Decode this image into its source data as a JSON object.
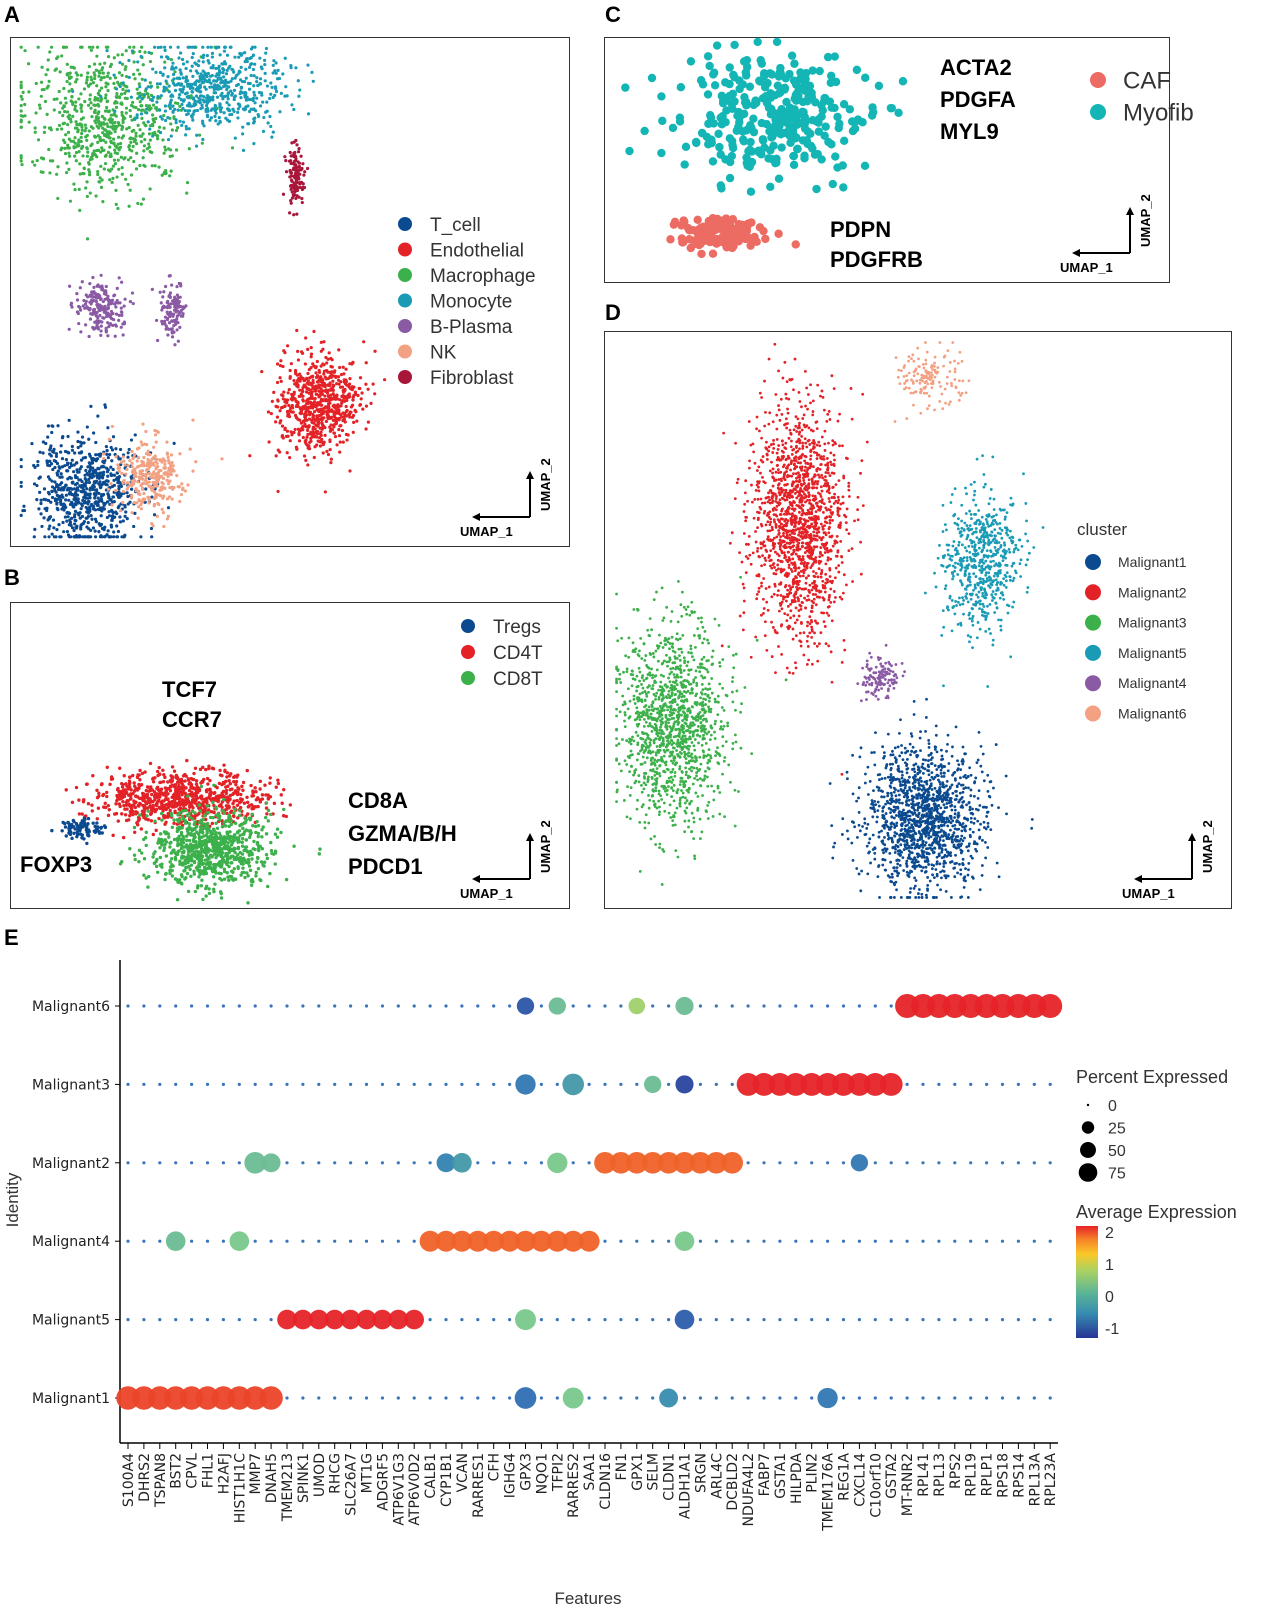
{
  "chart_data": [
    {
      "panel": "A",
      "type": "scatter",
      "title": "",
      "xlabel": "UMAP_1",
      "ylabel": "UMAP_2",
      "legend_position": "right",
      "legend": [
        {
          "label": "T_cell",
          "color": "#0b4a8f"
        },
        {
          "label": "Endothelial",
          "color": "#e32227"
        },
        {
          "label": "Macrophage",
          "color": "#3cb04a"
        },
        {
          "label": "Monocyte",
          "color": "#1a9bb5"
        },
        {
          "label": "B-Plasma",
          "color": "#8b5aa5"
        },
        {
          "label": "NK",
          "color": "#f2a183"
        },
        {
          "label": "Fibroblast",
          "color": "#a8163a"
        }
      ],
      "clusters": [
        {
          "label": "Macrophage",
          "center": [
            0.17,
            0.16
          ],
          "spread": [
            0.12,
            0.12
          ],
          "n": 700
        },
        {
          "label": "Monocyte",
          "center": [
            0.36,
            0.1
          ],
          "spread": [
            0.11,
            0.07
          ],
          "n": 600
        },
        {
          "label": "Fibroblast",
          "center": [
            0.51,
            0.27
          ],
          "spread": [
            0.012,
            0.05
          ],
          "n": 120
        },
        {
          "label": "B-Plasma",
          "center": [
            0.16,
            0.53
          ],
          "spread": [
            0.035,
            0.045
          ],
          "n": 200
        },
        {
          "label": "B-Plasma",
          "center": [
            0.29,
            0.54
          ],
          "spread": [
            0.018,
            0.05
          ],
          "n": 120
        },
        {
          "label": "Endothelial",
          "center": [
            0.55,
            0.72
          ],
          "spread": [
            0.06,
            0.08
          ],
          "n": 700
        },
        {
          "label": "T_cell",
          "center": [
            0.14,
            0.89
          ],
          "spread": [
            0.08,
            0.09
          ],
          "n": 700
        },
        {
          "label": "NK",
          "center": [
            0.25,
            0.86
          ],
          "spread": [
            0.05,
            0.06
          ],
          "n": 300
        }
      ]
    },
    {
      "panel": "B",
      "type": "scatter",
      "xlabel": "UMAP_1",
      "ylabel": "UMAP_2",
      "legend_position": "top-right",
      "legend": [
        {
          "label": "Tregs",
          "color": "#0b4a8f"
        },
        {
          "label": "CD4T",
          "color": "#e32227"
        },
        {
          "label": "CD8T",
          "color": "#3cb04a"
        }
      ],
      "annotations": [
        {
          "text": "TCF7\nCCR7",
          "at": "top-center"
        },
        {
          "text": "CD8A\nGZMA/B/H\nPDCD1",
          "at": "right"
        },
        {
          "text": "FOXP3",
          "at": "bottom-left"
        }
      ],
      "clusters": [
        {
          "label": "CD4T",
          "center": [
            0.3,
            0.64
          ],
          "spread": [
            0.13,
            0.07
          ],
          "n": 800
        },
        {
          "label": "CD8T",
          "center": [
            0.36,
            0.8
          ],
          "spread": [
            0.09,
            0.1
          ],
          "n": 800
        },
        {
          "label": "Tregs",
          "center": [
            0.13,
            0.74
          ],
          "spread": [
            0.03,
            0.03
          ],
          "n": 90
        }
      ]
    },
    {
      "panel": "C",
      "type": "scatter",
      "xlabel": "UMAP_1",
      "ylabel": "UMAP_2",
      "legend_position": "top-right",
      "legend": [
        {
          "label": "CAF",
          "color": "#ec6b62"
        },
        {
          "label": "Myofib",
          "color": "#14b5b5"
        }
      ],
      "annotations": [
        {
          "text": "ACTA2\nPDGFA\nMYL9",
          "at": "top-right"
        },
        {
          "text": "PDPN\nPDGFRB",
          "at": "bottom-center"
        }
      ],
      "clusters": [
        {
          "label": "Myofib",
          "center": [
            0.3,
            0.32
          ],
          "spread": [
            0.14,
            0.2
          ],
          "n": 320
        },
        {
          "label": "CAF",
          "center": [
            0.2,
            0.8
          ],
          "spread": [
            0.07,
            0.06
          ],
          "n": 130
        }
      ]
    },
    {
      "panel": "D",
      "type": "scatter",
      "xlabel": "UMAP_1",
      "ylabel": "UMAP_2",
      "legend_title": "cluster",
      "legend_position": "right",
      "legend": [
        {
          "label": "Malignant1",
          "color": "#0b4a8f"
        },
        {
          "label": "Malignant2",
          "color": "#e32227"
        },
        {
          "label": "Malignant3",
          "color": "#3cb04a"
        },
        {
          "label": "Malignant5",
          "color": "#1a9bb5"
        },
        {
          "label": "Malignant4",
          "color": "#8b5aa5"
        },
        {
          "label": "Malignant6",
          "color": "#f2a183"
        }
      ],
      "clusters": [
        {
          "label": "Malignant6",
          "center": [
            0.52,
            0.08
          ],
          "spread": [
            0.04,
            0.04
          ],
          "n": 150
        },
        {
          "label": "Malignant2",
          "center": [
            0.31,
            0.33
          ],
          "spread": [
            0.06,
            0.17
          ],
          "n": 1500
        },
        {
          "label": "Malignant5",
          "center": [
            0.6,
            0.4
          ],
          "spread": [
            0.05,
            0.1
          ],
          "n": 600
        },
        {
          "label": "Malignant4",
          "center": [
            0.44,
            0.6
          ],
          "spread": [
            0.025,
            0.03
          ],
          "n": 120
        },
        {
          "label": "Malignant3",
          "center": [
            0.11,
            0.68
          ],
          "spread": [
            0.07,
            0.14
          ],
          "n": 1300
        },
        {
          "label": "Malignant1",
          "center": [
            0.51,
            0.84
          ],
          "spread": [
            0.08,
            0.1
          ],
          "n": 1400
        }
      ]
    },
    {
      "panel": "E",
      "type": "dotplot",
      "xlabel": "Features",
      "ylabel": "Identity",
      "identities": [
        "Malignant6",
        "Malignant3",
        "Malignant2",
        "Malignant4",
        "Malignant5",
        "Malignant1"
      ],
      "features": [
        "S100A4",
        "DHRS2",
        "TSPAN8",
        "BST2",
        "CPVL",
        "FHL1",
        "H2AFJ",
        "HIST1H1C",
        "MMP7",
        "DNAH5",
        "TMEM213",
        "SPINK1",
        "UMOD",
        "RHCG",
        "SLC26A7",
        "MT1G",
        "ADGRF5",
        "ATP6V1G3",
        "ATP6V0D2",
        "CALB1",
        "CYP1B1",
        "VCAN",
        "RARRES1",
        "CFH",
        "IGHG4",
        "GPX3",
        "NQO1",
        "TFPI2",
        "RARRES2",
        "SAA1",
        "CLDN16",
        "FN1",
        "GPX1",
        "SELM",
        "CLDN1",
        "ALDH1A1",
        "SRGN",
        "ARL4C",
        "DCBLD2",
        "NDUFA4L2",
        "FABP7",
        "GSTA1",
        "HILPDA",
        "PLIN2",
        "TMEM176A",
        "REG1A",
        "CXCL14",
        "C10orf10",
        "GSTA2",
        "MT-RNR2",
        "RPL41",
        "RPL13",
        "RPS2",
        "RPL19",
        "RPLP1",
        "RPS18",
        "RPS14",
        "RPL13A",
        "RPL23A"
      ],
      "size_legend": {
        "title": "Percent Expressed",
        "breaks": [
          0,
          25,
          50,
          75
        ]
      },
      "color_legend": {
        "title": "Average Expression",
        "breaks": [
          2,
          1,
          0,
          -1
        ],
        "range": [
          -1,
          2
        ]
      },
      "highlight_blocks": [
        {
          "identity": "Malignant1",
          "features_from": 0,
          "features_to": 9,
          "pct": 85,
          "avg": 1.9
        },
        {
          "identity": "Malignant5",
          "features_from": 10,
          "features_to": 18,
          "pct": 55,
          "avg": 2.0
        },
        {
          "identity": "Malignant4",
          "features_from": 19,
          "features_to": 29,
          "pct": 65,
          "avg": 1.8
        },
        {
          "identity": "Malignant2",
          "features_from": 30,
          "features_to": 38,
          "pct": 70,
          "avg": 1.8
        },
        {
          "identity": "Malignant3",
          "features_from": 39,
          "features_to": 48,
          "pct": 80,
          "avg": 2.0
        },
        {
          "identity": "Malignant6",
          "features_from": 49,
          "features_to": 58,
          "pct": 90,
          "avg": 2.0
        }
      ],
      "notable_points": [
        {
          "identity": "Malignant6",
          "feature": "GPX3",
          "pct": 40,
          "avg": -0.6
        },
        {
          "identity": "Malignant6",
          "feature": "TFPI2",
          "pct": 40,
          "avg": 0.4
        },
        {
          "identity": "Malignant6",
          "feature": "GPX1",
          "pct": 35,
          "avg": 0.9
        },
        {
          "identity": "Malignant6",
          "feature": "ALDH1A1",
          "pct": 45,
          "avg": 0.4
        },
        {
          "identity": "Malignant3",
          "feature": "GPX3",
          "pct": 60,
          "avg": -0.2
        },
        {
          "identity": "Malignant3",
          "feature": "RARRES2",
          "pct": 70,
          "avg": 0.1
        },
        {
          "identity": "Malignant3",
          "feature": "SELM",
          "pct": 40,
          "avg": 0.4
        },
        {
          "identity": "Malignant3",
          "feature": "ALDH1A1",
          "pct": 45,
          "avg": -0.8
        },
        {
          "identity": "Malignant2",
          "feature": "MMP7",
          "pct": 70,
          "avg": 0.4
        },
        {
          "identity": "Malignant2",
          "feature": "DNAH5",
          "pct": 50,
          "avg": 0.4
        },
        {
          "identity": "Malignant2",
          "feature": "CYP1B1",
          "pct": 50,
          "avg": -0.1
        },
        {
          "identity": "Malignant2",
          "feature": "VCAN",
          "pct": 55,
          "avg": 0.1
        },
        {
          "identity": "Malignant2",
          "feature": "TFPI2",
          "pct": 60,
          "avg": 0.5
        },
        {
          "identity": "Malignant2",
          "feature": "CXCL14",
          "pct": 40,
          "avg": -0.2
        },
        {
          "identity": "Malignant4",
          "feature": "BST2",
          "pct": 55,
          "avg": 0.4
        },
        {
          "identity": "Malignant4",
          "feature": "HIST1H1C",
          "pct": 55,
          "avg": 0.5
        },
        {
          "identity": "Malignant4",
          "feature": "ALDH1A1",
          "pct": 55,
          "avg": 0.5
        },
        {
          "identity": "Malignant5",
          "feature": "GPX3",
          "pct": 65,
          "avg": 0.5
        },
        {
          "identity": "Malignant5",
          "feature": "ALDH1A1",
          "pct": 55,
          "avg": -0.5
        },
        {
          "identity": "Malignant1",
          "feature": "GPX3",
          "pct": 70,
          "avg": -0.3
        },
        {
          "identity": "Malignant1",
          "feature": "RARRES2",
          "pct": 65,
          "avg": 0.5
        },
        {
          "identity": "Malignant1",
          "feature": "CLDN1",
          "pct": 50,
          "avg": 0.0
        },
        {
          "identity": "Malignant1",
          "feature": "TMEM176A",
          "pct": 60,
          "avg": -0.2
        }
      ],
      "baseline": {
        "pct": 3,
        "avg": -0.3
      }
    }
  ],
  "panels": {
    "A": {
      "letter": "A"
    },
    "B": {
      "letter": "B"
    },
    "C": {
      "letter": "C"
    },
    "D": {
      "letter": "D"
    },
    "E": {
      "letter": "E"
    }
  },
  "axes": {
    "umap1": "UMAP_1",
    "umap2": "UMAP_2"
  }
}
